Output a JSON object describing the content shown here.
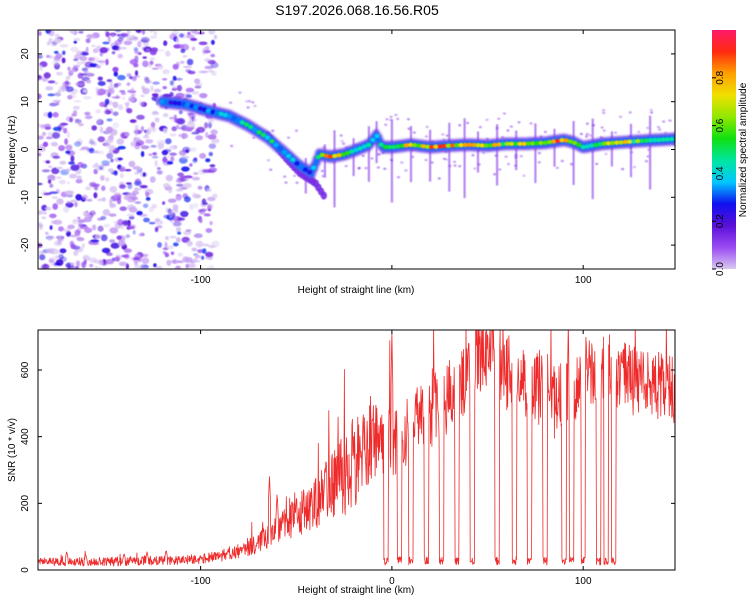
{
  "title": "S197.2026.068.16.56.R05",
  "chart_data": [
    {
      "type": "heatmap",
      "name": "spectrogram",
      "xlabel": "Height of straight line (km)",
      "ylabel": "Frequency (Hz)",
      "xlim": [
        -185,
        148
      ],
      "ylim": [
        -25,
        25
      ],
      "xticks": [
        -100,
        0,
        100
      ],
      "xtick_labels": [
        "-100",
        "",
        "100"
      ],
      "yticks": [
        -20,
        -10,
        0,
        10,
        20
      ],
      "ytick_labels": [
        "-20",
        "-10",
        "0",
        "10",
        "20"
      ],
      "colorbar": {
        "label": "Normalized spectral amplitude",
        "range": [
          0,
          1
        ],
        "ticks": [
          0.0,
          0.2,
          0.4,
          0.6,
          0.8
        ],
        "tick_labels": [
          "0.0",
          "0.2",
          "0.4",
          "0.6",
          "0.8"
        ],
        "colors": [
          "#d8c8f0",
          "#9a4af2",
          "#5a10d8",
          "#1010f0",
          "#00c8ff",
          "#00e6a0",
          "#10e010",
          "#90e800",
          "#f0e000",
          "#ffa000",
          "#ff2a10",
          "#ff1a6a"
        ]
      },
      "noise_region_x": [
        -185,
        -92
      ],
      "ridge": [
        [
          -120,
          10
        ],
        [
          -108,
          9.5
        ],
        [
          -95,
          8
        ],
        [
          -85,
          7
        ],
        [
          -75,
          5
        ],
        [
          -65,
          2.5
        ],
        [
          -55,
          -1
        ],
        [
          -48,
          -3.5
        ],
        [
          -42,
          -5
        ],
        [
          -38,
          -1
        ],
        [
          -32,
          -1.5
        ],
        [
          -25,
          -1
        ],
        [
          -18,
          0
        ],
        [
          -12,
          1
        ],
        [
          -8,
          3
        ],
        [
          -5,
          0.5
        ],
        [
          0,
          0.5
        ],
        [
          10,
          1
        ],
        [
          20,
          0.5
        ],
        [
          30,
          0.8
        ],
        [
          40,
          1
        ],
        [
          50,
          0.8
        ],
        [
          60,
          1.2
        ],
        [
          70,
          1.2
        ],
        [
          80,
          1.4
        ],
        [
          90,
          2
        ],
        [
          95,
          1.5
        ],
        [
          100,
          0.5
        ],
        [
          110,
          1.2
        ],
        [
          120,
          1.5
        ],
        [
          130,
          1.8
        ],
        [
          148,
          2.2
        ]
      ],
      "ridge_amplitude": [
        0.3,
        0.3,
        0.35,
        0.4,
        0.45,
        0.45,
        0.4,
        0.3,
        0.25,
        0.6,
        0.85,
        0.6,
        0.45,
        0.5,
        0.45,
        0.5,
        0.65,
        0.75,
        0.85,
        0.8,
        0.75,
        0.75,
        0.65,
        0.7,
        0.8,
        0.85,
        0.6,
        0.5,
        0.65,
        0.75,
        0.55,
        0.45
      ],
      "branch_ridge": [
        [
          -65,
          3
        ],
        [
          -55,
          -2
        ],
        [
          -48,
          -5
        ],
        [
          -40,
          -7
        ],
        [
          -35,
          -10
        ]
      ],
      "vertical_streak_x": [
        -45,
        -35,
        -30,
        -20,
        -12,
        -8,
        0,
        10,
        20,
        30,
        38,
        45,
        55,
        65,
        75,
        85,
        95,
        105,
        115,
        125,
        135
      ]
    },
    {
      "type": "line",
      "name": "snr",
      "xlabel": "Height of straight line (km)",
      "ylabel": "SNR (10 * v/v)",
      "xlim": [
        -185,
        148
      ],
      "ylim": [
        0,
        720
      ],
      "xticks": [
        -100,
        0,
        100
      ],
      "xtick_labels": [
        "-100",
        "0",
        "100"
      ],
      "yticks": [
        0,
        200,
        400,
        600
      ],
      "ytick_labels": [
        "0",
        "200",
        "400",
        "600"
      ],
      "color": "#ee2a2a",
      "envelope": [
        [
          -185,
          25
        ],
        [
          -150,
          25
        ],
        [
          -110,
          30
        ],
        [
          -90,
          40
        ],
        [
          -80,
          60
        ],
        [
          -70,
          80
        ],
        [
          -60,
          120
        ],
        [
          -50,
          160
        ],
        [
          -40,
          200
        ],
        [
          -30,
          250
        ],
        [
          -20,
          320
        ],
        [
          -10,
          400
        ],
        [
          -5,
          400
        ],
        [
          0,
          380
        ],
        [
          10,
          440
        ],
        [
          20,
          470
        ],
        [
          30,
          520
        ],
        [
          38,
          560
        ],
        [
          42,
          620
        ],
        [
          48,
          650
        ],
        [
          55,
          620
        ],
        [
          65,
          580
        ],
        [
          75,
          560
        ],
        [
          85,
          500
        ],
        [
          95,
          560
        ],
        [
          100,
          560
        ],
        [
          105,
          600
        ],
        [
          115,
          600
        ],
        [
          125,
          570
        ],
        [
          135,
          560
        ],
        [
          148,
          540
        ]
      ],
      "noise_amplitude": [
        [
          -185,
          12
        ],
        [
          -90,
          16
        ],
        [
          -60,
          40
        ],
        [
          -40,
          80
        ],
        [
          -20,
          140
        ],
        [
          0,
          120
        ],
        [
          30,
          110
        ],
        [
          60,
          120
        ],
        [
          100,
          110
        ],
        [
          148,
          100
        ]
      ],
      "peaks": [
        [
          -170,
          55
        ],
        [
          -160,
          45
        ],
        [
          -140,
          50
        ],
        [
          -128,
          55
        ],
        [
          -118,
          60
        ],
        [
          -100,
          40
        ],
        [
          -88,
          45
        ],
        [
          -78,
          70
        ],
        [
          -64,
          280
        ],
        [
          -60,
          230
        ],
        [
          -50,
          210
        ],
        [
          -42,
          245
        ],
        [
          -35,
          310
        ],
        [
          -28,
          300
        ],
        [
          -15,
          480
        ],
        [
          -10,
          470
        ],
        [
          -4,
          500
        ],
        [
          0,
          720
        ],
        [
          3,
          480
        ],
        [
          10,
          520
        ],
        [
          22,
          560
        ],
        [
          40,
          700
        ],
        [
          44,
          710
        ],
        [
          50,
          720
        ],
        [
          58,
          680
        ],
        [
          66,
          640
        ],
        [
          80,
          600
        ],
        [
          91,
          580
        ],
        [
          102,
          640
        ],
        [
          110,
          670
        ],
        [
          116,
          680
        ],
        [
          130,
          610
        ]
      ],
      "dropouts_x": [
        -3,
        4,
        10,
        18,
        26,
        34,
        42,
        55,
        64,
        72,
        80,
        90,
        94,
        100,
        108,
        112,
        116
      ],
      "dropout_level": 15
    }
  ]
}
